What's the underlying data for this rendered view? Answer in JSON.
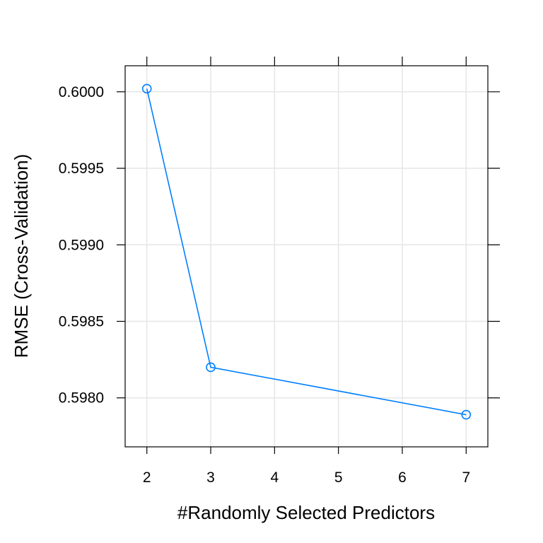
{
  "chart_data": {
    "type": "line",
    "title": "",
    "xlabel": "#Randomly Selected Predictors",
    "ylabel": "RMSE (Cross-Validation)",
    "xlim": [
      1.66,
      7.34
    ],
    "ylim": [
      0.59768,
      0.60017
    ],
    "x_ticks": [
      2,
      3,
      4,
      5,
      6,
      7
    ],
    "y_ticks": [
      0.598,
      0.5985,
      0.599,
      0.5995,
      0.6
    ],
    "x_tick_labels": [
      "2",
      "3",
      "4",
      "5",
      "6",
      "7"
    ],
    "y_tick_labels": [
      "0.5980",
      "0.5985",
      "0.5990",
      "0.5995",
      "0.6000"
    ],
    "grid": true,
    "series": [
      {
        "x": [
          2,
          3,
          7
        ],
        "y": [
          0.60002,
          0.5982,
          0.59789
        ],
        "color": "#0080ff",
        "marker": "open-circle"
      }
    ]
  }
}
